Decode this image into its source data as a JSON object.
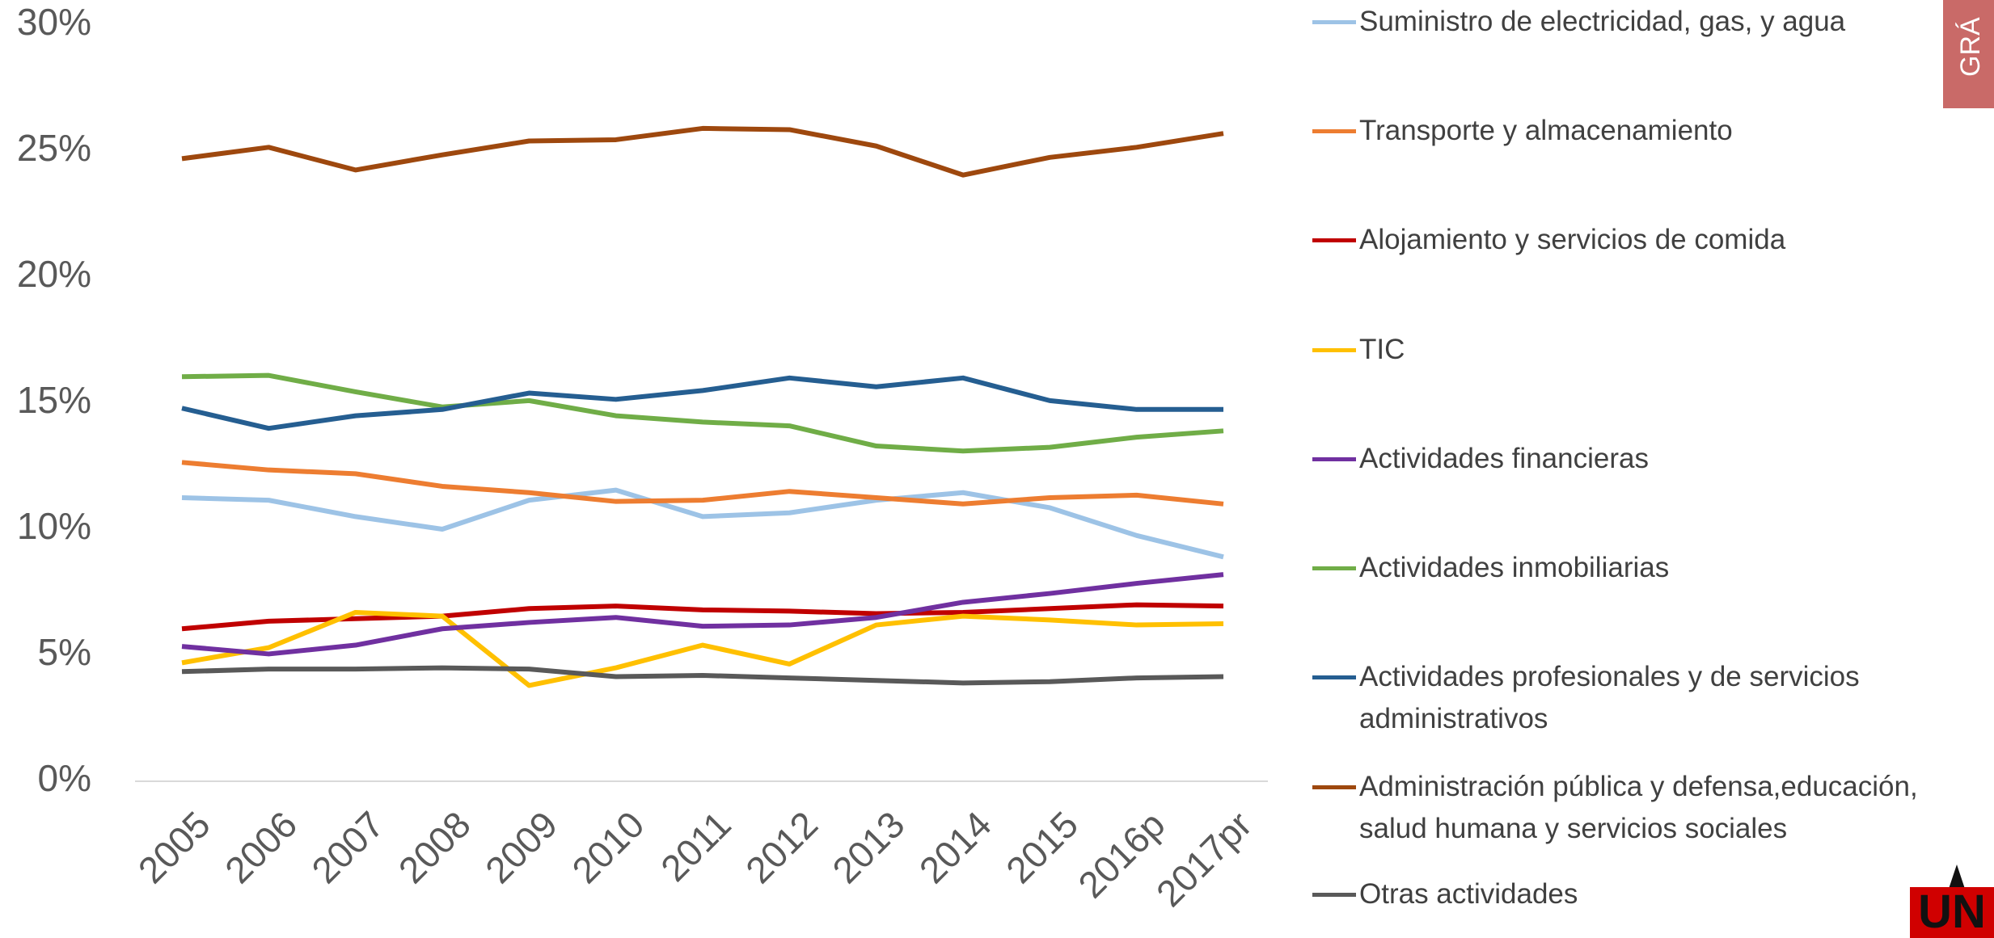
{
  "chart_data": {
    "type": "line",
    "categories": [
      "2005",
      "2006",
      "2007",
      "2008",
      "2009",
      "2010",
      "2011",
      "2012",
      "2013",
      "2014",
      "2015",
      "2016p",
      "2017pr"
    ],
    "ylim": [
      0,
      30
    ],
    "yticks": [
      {
        "value": 0,
        "label": "0%"
      },
      {
        "value": 5,
        "label": "5%"
      },
      {
        "value": 10,
        "label": "10%"
      },
      {
        "value": 15,
        "label": "15%"
      },
      {
        "value": 20,
        "label": "20%"
      },
      {
        "value": 25,
        "label": "25%"
      },
      {
        "value": 30,
        "label": "30%"
      }
    ],
    "grid": false,
    "legend": "right",
    "series": [
      {
        "name": "Suministro de electricidad, gas, y agua",
        "color": "#9dc3e6",
        "values": [
          11.25,
          11.15,
          10.5,
          10.0,
          11.15,
          11.55,
          10.5,
          10.65,
          11.15,
          11.45,
          10.85,
          9.75,
          8.9
        ]
      },
      {
        "name": "Transporte y almacenamiento",
        "color": "#ed7d31",
        "values": [
          12.65,
          12.35,
          12.2,
          11.7,
          11.45,
          11.1,
          11.15,
          11.5,
          11.25,
          11.0,
          11.25,
          11.35,
          11.0
        ]
      },
      {
        "name": "Alojamiento y servicios de comida",
        "color": "#c00000",
        "values": [
          6.05,
          6.35,
          6.45,
          6.55,
          6.85,
          6.95,
          6.8,
          6.75,
          6.65,
          6.7,
          6.85,
          7.0,
          6.95
        ]
      },
      {
        "name": "TIC",
        "color": "#ffc000",
        "values": [
          4.7,
          5.3,
          6.7,
          6.55,
          3.8,
          4.5,
          5.4,
          4.65,
          6.2,
          6.55,
          6.4,
          6.2,
          6.25
        ]
      },
      {
        "name": "Actividades financieras",
        "color": "#7030a0",
        "values": [
          5.35,
          5.05,
          5.4,
          6.05,
          6.3,
          6.5,
          6.15,
          6.2,
          6.5,
          7.1,
          7.45,
          7.85,
          8.2
        ]
      },
      {
        "name": "Actividades inmobiliarias",
        "color": "#70ad47",
        "values": [
          16.05,
          16.1,
          15.45,
          14.85,
          15.1,
          14.5,
          14.25,
          14.1,
          13.3,
          13.1,
          13.25,
          13.65,
          13.9
        ]
      },
      {
        "name": "Actividades profesionales y de servicios administrativos",
        "color": "#255e91",
        "values": [
          14.8,
          14.0,
          14.5,
          14.75,
          15.4,
          15.15,
          15.5,
          16.0,
          15.65,
          16.0,
          15.1,
          14.75,
          14.75
        ]
      },
      {
        "name": "Administración pública y defensa,educación, salud humana y servicios sociales",
        "color": "#9e480e",
        "values": [
          24.7,
          25.15,
          24.25,
          24.85,
          25.4,
          25.45,
          25.9,
          25.85,
          25.2,
          24.05,
          24.75,
          25.15,
          25.7
        ]
      },
      {
        "name": "Otras actividades",
        "color": "#595959",
        "values": [
          4.35,
          4.45,
          4.45,
          4.5,
          4.45,
          4.15,
          4.2,
          4.1,
          4.0,
          3.9,
          3.95,
          4.1,
          4.15
        ]
      }
    ]
  },
  "side_tab": "GRÁ",
  "logo": "UN"
}
